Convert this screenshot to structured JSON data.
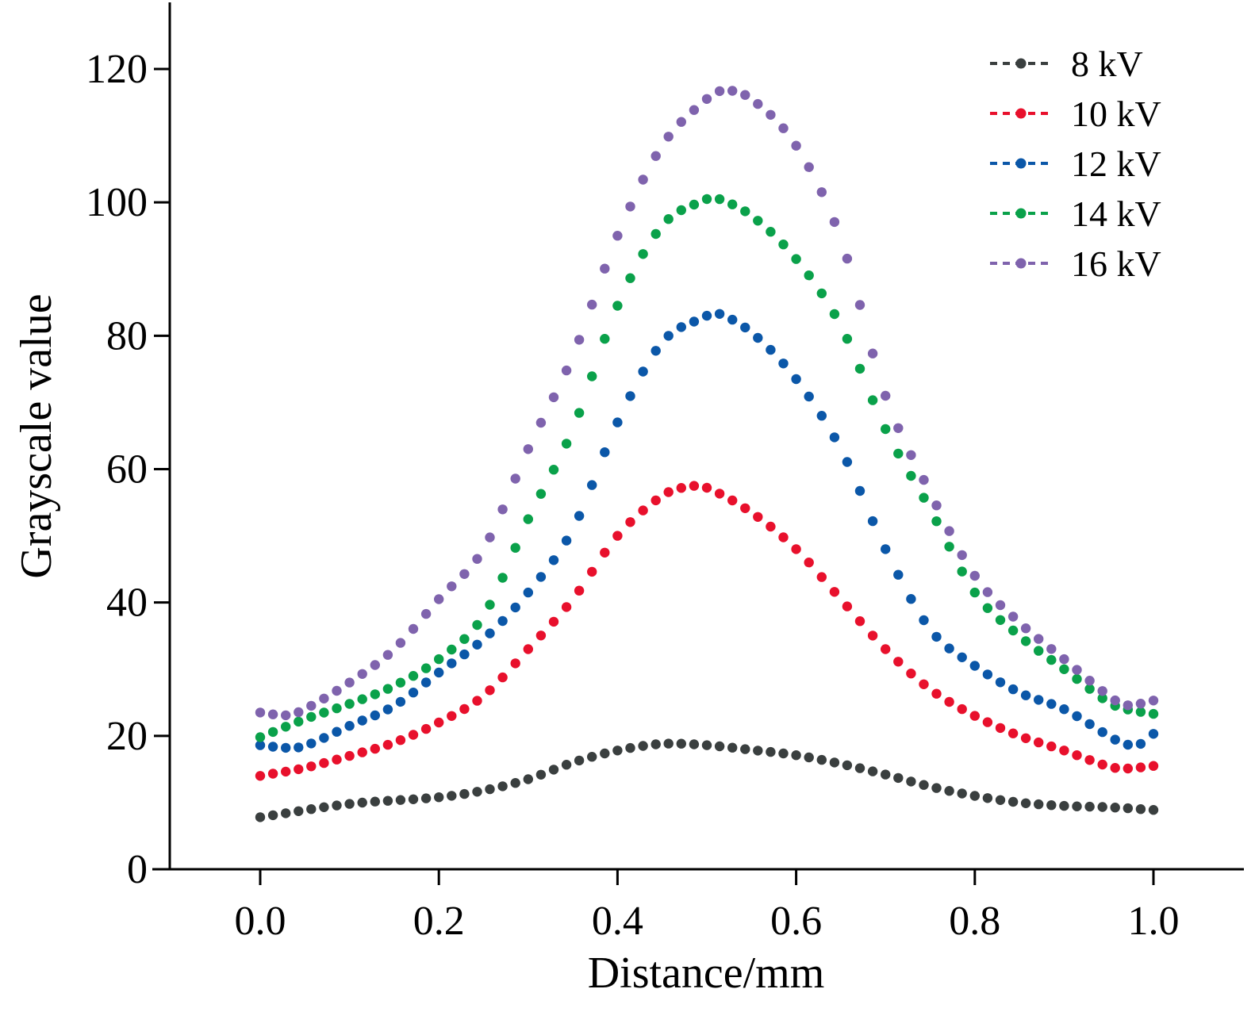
{
  "chart_data": {
    "type": "scatter",
    "title": "",
    "xlabel": "Distance/mm",
    "ylabel": "Grayscale value",
    "xlim": [
      -0.1,
      1.1
    ],
    "ylim": [
      0,
      130
    ],
    "xticks": [
      0.0,
      0.2,
      0.4,
      0.6,
      0.8,
      1.0
    ],
    "xtick_labels": [
      "0.0",
      "0.2",
      "0.4",
      "0.6",
      "0.8",
      "1.0"
    ],
    "yticks": [
      0,
      20,
      40,
      60,
      80,
      100,
      120
    ],
    "ytick_labels": [
      "0",
      "20",
      "40",
      "60",
      "80",
      "100",
      "120"
    ],
    "grid": false,
    "legend": "top-right",
    "legend_style": "dashed line with dot marker",
    "series": [
      {
        "name": "8 kV",
        "color": "#3a3f3f",
        "points": [
          [
            0.0,
            7.8
          ],
          [
            0.1,
            9.8
          ],
          [
            0.2,
            10.8
          ],
          [
            0.25,
            11.8
          ],
          [
            0.3,
            13.5
          ],
          [
            0.35,
            16.0
          ],
          [
            0.4,
            17.8
          ],
          [
            0.45,
            18.8
          ],
          [
            0.5,
            18.6
          ],
          [
            0.55,
            17.9
          ],
          [
            0.6,
            17.1
          ],
          [
            0.65,
            15.8
          ],
          [
            0.7,
            14.2
          ],
          [
            0.75,
            12.4
          ],
          [
            0.8,
            11.0
          ],
          [
            0.85,
            10.0
          ],
          [
            0.9,
            9.5
          ],
          [
            0.95,
            9.3
          ],
          [
            1.0,
            8.9
          ]
        ]
      },
      {
        "name": "10 kV",
        "color": "#e8102c",
        "points": [
          [
            0.0,
            14.0
          ],
          [
            0.05,
            15.2
          ],
          [
            0.1,
            17.0
          ],
          [
            0.15,
            19.0
          ],
          [
            0.2,
            22.0
          ],
          [
            0.25,
            26.0
          ],
          [
            0.3,
            33.0
          ],
          [
            0.35,
            40.5
          ],
          [
            0.4,
            50.0
          ],
          [
            0.45,
            56.0
          ],
          [
            0.48,
            57.4
          ],
          [
            0.5,
            57.2
          ],
          [
            0.55,
            53.5
          ],
          [
            0.6,
            48.0
          ],
          [
            0.65,
            40.5
          ],
          [
            0.7,
            33.0
          ],
          [
            0.75,
            27.0
          ],
          [
            0.8,
            23.0
          ],
          [
            0.85,
            20.0
          ],
          [
            0.9,
            17.8
          ],
          [
            0.95,
            15.4
          ],
          [
            0.97,
            15.1
          ],
          [
            1.0,
            15.5
          ]
        ]
      },
      {
        "name": "12 kV",
        "color": "#0b57a8",
        "points": [
          [
            0.0,
            18.6
          ],
          [
            0.03,
            18.2
          ],
          [
            0.05,
            18.5
          ],
          [
            0.1,
            21.5
          ],
          [
            0.15,
            24.5
          ],
          [
            0.2,
            29.5
          ],
          [
            0.25,
            34.5
          ],
          [
            0.3,
            41.5
          ],
          [
            0.35,
            51.0
          ],
          [
            0.4,
            67.0
          ],
          [
            0.45,
            79.0
          ],
          [
            0.5,
            83.0
          ],
          [
            0.51,
            83.5
          ],
          [
            0.55,
            80.5
          ],
          [
            0.6,
            73.5
          ],
          [
            0.65,
            63.0
          ],
          [
            0.7,
            48.0
          ],
          [
            0.75,
            36.0
          ],
          [
            0.8,
            30.5
          ],
          [
            0.85,
            26.5
          ],
          [
            0.9,
            24.0
          ],
          [
            0.95,
            20.0
          ],
          [
            0.97,
            18.7
          ],
          [
            0.99,
            19.0
          ],
          [
            1.0,
            20.3
          ]
        ]
      },
      {
        "name": "14 kV",
        "color": "#0aa14a",
        "points": [
          [
            0.0,
            19.8
          ],
          [
            0.05,
            22.5
          ],
          [
            0.1,
            24.8
          ],
          [
            0.15,
            27.5
          ],
          [
            0.2,
            31.5
          ],
          [
            0.25,
            38.0
          ],
          [
            0.3,
            52.5
          ],
          [
            0.35,
            66.0
          ],
          [
            0.4,
            84.5
          ],
          [
            0.45,
            96.5
          ],
          [
            0.5,
            100.5
          ],
          [
            0.51,
            100.7
          ],
          [
            0.55,
            98.0
          ],
          [
            0.6,
            91.5
          ],
          [
            0.65,
            81.5
          ],
          [
            0.7,
            66.0
          ],
          [
            0.75,
            54.0
          ],
          [
            0.8,
            41.5
          ],
          [
            0.85,
            35.0
          ],
          [
            0.9,
            30.0
          ],
          [
            0.95,
            25.0
          ],
          [
            0.97,
            24.0
          ],
          [
            1.0,
            23.3
          ]
        ]
      },
      {
        "name": "16 kV",
        "color": "#7f63ad",
        "points": [
          [
            0.0,
            23.5
          ],
          [
            0.03,
            23.1
          ],
          [
            0.05,
            24.0
          ],
          [
            0.1,
            28.0
          ],
          [
            0.15,
            33.0
          ],
          [
            0.2,
            40.5
          ],
          [
            0.25,
            48.0
          ],
          [
            0.3,
            63.0
          ],
          [
            0.35,
            77.0
          ],
          [
            0.4,
            95.0
          ],
          [
            0.45,
            108.5
          ],
          [
            0.5,
            115.5
          ],
          [
            0.52,
            116.8
          ],
          [
            0.55,
            115.5
          ],
          [
            0.6,
            108.5
          ],
          [
            0.65,
            94.5
          ],
          [
            0.7,
            71.0
          ],
          [
            0.75,
            56.5
          ],
          [
            0.8,
            44.0
          ],
          [
            0.85,
            37.0
          ],
          [
            0.9,
            31.5
          ],
          [
            0.95,
            26.0
          ],
          [
            0.97,
            24.6
          ],
          [
            1.0,
            25.3
          ]
        ]
      }
    ]
  }
}
